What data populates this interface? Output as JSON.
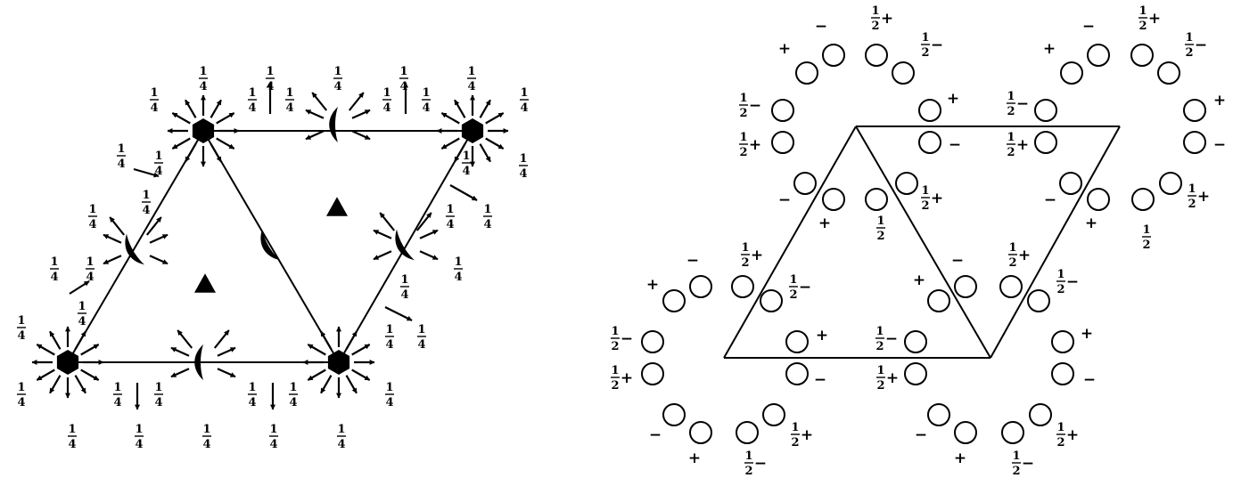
{
  "labels": {
    "quarter": {
      "num": "1",
      "den": "4"
    },
    "half": {
      "num": "1",
      "den": "2"
    },
    "plus": "+",
    "minus": "−"
  },
  "colors": {
    "ink": "#000000",
    "paper": "#ffffff"
  },
  "symbols": {
    "sixfold_axis": "filled-hexagon",
    "threefold_axis": "filled-triangle",
    "twofold_screw_axis": "filled-lens",
    "general_position": "open-circle"
  }
}
